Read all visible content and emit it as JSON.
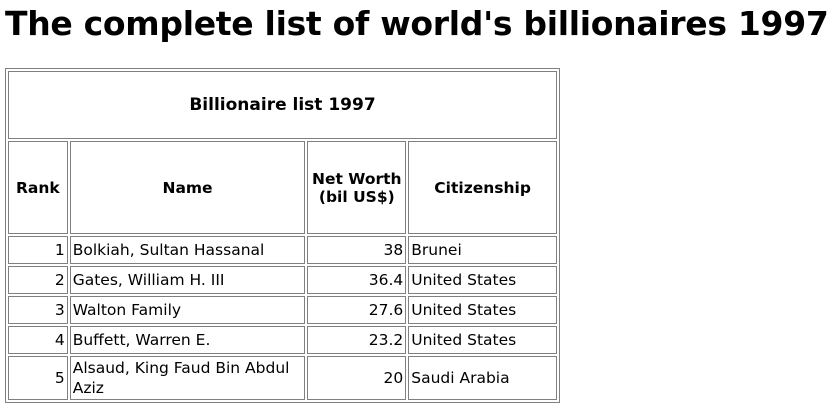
{
  "header": {
    "title": "The complete list of world's billionaires 1997"
  },
  "table": {
    "caption": "Billionaire list 1997",
    "columns": [
      "Rank",
      "Name",
      "Net Worth (bil US$)",
      "Citizenship"
    ],
    "rows": [
      [
        1,
        "Bolkiah, Sultan Hassanal",
        38,
        "Brunei"
      ],
      [
        2,
        "Gates, William H. III",
        36.4,
        "United States"
      ],
      [
        3,
        "Walton Family",
        27.6,
        "United States"
      ],
      [
        4,
        "Buffett, Warren E.",
        23.2,
        "United States"
      ],
      [
        5,
        "Alsaud, King Faud Bin Abdul Aziz",
        20,
        "Saudi Arabia"
      ]
    ]
  }
}
